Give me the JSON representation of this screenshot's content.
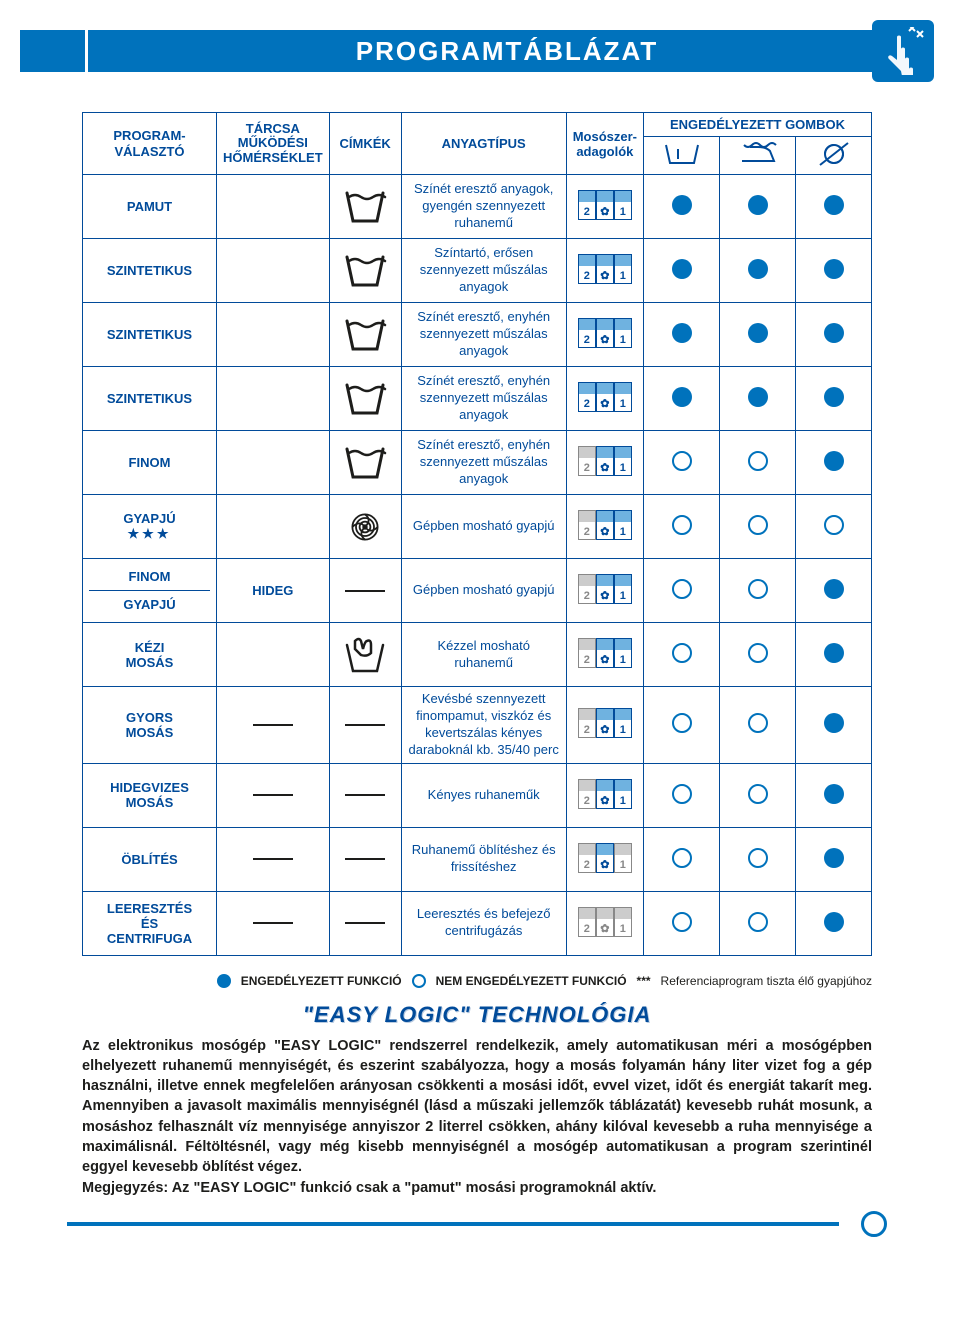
{
  "colors": {
    "accent": "#0072bc",
    "dark_blue": "#014b9a",
    "text": "#1d1d1b",
    "light_blue_fill": "#6fb2e0",
    "inactive_grey": "#888888",
    "inactive_fill": "#cccccc",
    "bg": "#ffffff"
  },
  "title": "PROGRAMTÁBLÁZAT",
  "title_icon": "hand-icon",
  "headers": {
    "program": "PROGRAM-VÁLASZTÓ",
    "tarcsa": "TÁRCSA MŰKÖDÉSI HŐMÉRSÉKLET",
    "cimkek": "CÍMKÉK",
    "anyag": "ANYAGTÍPUS",
    "mososzer": "Mosószer-adagolók",
    "gombok": "ENGEDÉLYEZETT GOMBOK"
  },
  "button_icons": [
    "prewash-icon",
    "easy-iron-icon",
    "no-spin-icon"
  ],
  "rows": [
    {
      "program": "PAMUT",
      "stars": "",
      "tarcsa": "",
      "icon": "tub",
      "desc": "Színét eresztő anyagok, gyengén szennyezett ruhanemű",
      "dispenser": [
        true,
        true,
        true
      ],
      "buttons": [
        "filled",
        "filled",
        "filled"
      ]
    },
    {
      "program": "SZINTETIKUS",
      "stars": "",
      "tarcsa": "",
      "icon": "tub",
      "desc": "Színtartó, erősen szennyezett műszálas anyagok",
      "dispenser": [
        true,
        true,
        true
      ],
      "buttons": [
        "filled",
        "filled",
        "filled"
      ]
    },
    {
      "program": "SZINTETIKUS",
      "stars": "",
      "tarcsa": "",
      "icon": "tub",
      "desc": "Színét eresztő, enyhén szennyezett műszálas anyagok",
      "dispenser": [
        true,
        true,
        true
      ],
      "buttons": [
        "filled",
        "filled",
        "filled"
      ]
    },
    {
      "program": "SZINTETIKUS",
      "stars": "",
      "tarcsa": "",
      "icon": "tub",
      "desc": "Színét eresztő, enyhén szennyezett műszálas anyagok",
      "dispenser": [
        true,
        true,
        true
      ],
      "buttons": [
        "filled",
        "filled",
        "filled"
      ]
    },
    {
      "program": "FINOM",
      "stars": "",
      "tarcsa": "",
      "icon": "tub",
      "desc": "Színét eresztő, enyhén szennyezett műszálas anyagok",
      "dispenser": [
        false,
        true,
        true
      ],
      "buttons": [
        "open",
        "open",
        "filled"
      ]
    },
    {
      "program": "GYAPJÚ",
      "stars": "★★★",
      "tarcsa": "",
      "icon": "wool",
      "desc": "Gépben mosható gyapjú",
      "dispenser": [
        false,
        true,
        true
      ],
      "buttons": [
        "open",
        "open",
        "open"
      ]
    },
    {
      "program": "FINOM / GYAPJÚ",
      "stars": "",
      "tarcsa": "HIDEG",
      "icon": "dash",
      "desc": "Gépben mosható gyapjú",
      "dispenser": [
        false,
        true,
        true
      ],
      "buttons": [
        "open",
        "open",
        "filled"
      ],
      "split": true,
      "program_top": "FINOM",
      "program_bottom": "GYAPJÚ"
    },
    {
      "program": "KÉZI MOSÁS",
      "stars": "",
      "tarcsa": "",
      "icon": "hand-tub",
      "desc": "Kézzel mosható ruhanemű",
      "dispenser": [
        false,
        true,
        true
      ],
      "buttons": [
        "open",
        "open",
        "filled"
      ]
    },
    {
      "program": "GYORS MOSÁS",
      "stars": "",
      "tarcsa": "dash",
      "icon": "dash",
      "desc": "Kevésbé szennyezett finompamut, viszkóz és kevertszálas kényes daraboknál kb. 35/40 perc",
      "dispenser": [
        false,
        true,
        true
      ],
      "buttons": [
        "open",
        "open",
        "filled"
      ]
    },
    {
      "program": "HIDEGVIZES MOSÁS",
      "stars": "",
      "tarcsa": "dash",
      "icon": "dash",
      "desc": "Kényes ruhaneműk",
      "dispenser": [
        false,
        true,
        true
      ],
      "buttons": [
        "open",
        "open",
        "filled"
      ]
    },
    {
      "program": "ÖBLÍTÉS",
      "stars": "",
      "tarcsa": "dash",
      "icon": "dash",
      "desc": "Ruhanemű öblítéshez és frissítéshez",
      "dispenser": [
        false,
        true,
        false
      ],
      "buttons": [
        "open",
        "open",
        "filled"
      ]
    },
    {
      "program": "LEERESZTÉS ÉS CENTRIFUGA",
      "stars": "",
      "tarcsa": "dash",
      "icon": "dash",
      "desc": "Leeresztés és befejező centrifugázás",
      "dispenser": [
        false,
        false,
        false
      ],
      "buttons": [
        "open",
        "open",
        "filled"
      ]
    }
  ],
  "legend": {
    "allowed": "ENGEDÉLYEZETT FUNKCIÓ",
    "not_allowed": "NEM ENGEDÉLYEZETT FUNKCIÓ",
    "ref_asterisk": "***",
    "ref": "Referenciaprogram tiszta élő gyapjúhoz"
  },
  "easy_logic": {
    "title": "\"EASY LOGIC\" TECHNOLÓGIA",
    "body": "Az elektronikus mosógép \"EASY LOGIC\" rendszerrel rendelkezik, amely automatikusan méri a mosógépben elhelyezett ruhanemű mennyiségét, és eszerint szabályozza, hogy a mosás folyamán hány liter vizet fog a gép használni, illetve ennek megfelelően arányosan csökkenti a mosási időt, evvel vizet, időt és energiát takarít meg. Amennyiben a javasolt maximális mennyiségnél (lásd a műszaki jellemzők táblázatát) kevesebb ruhát mosunk, a mosáshoz felhasznált víz mennyisége annyiszor 2 literrel csökken, ahány kilóval kevesebb a ruha mennyisége a maximálisnál. Féltöltésnél, vagy még kisebb mennyiségnél a mosógép automatikusan a program szerintinél eggyel kevesebb öblítést végez.",
    "note": "Megjegyzés: Az \"EASY LOGIC\" funkció csak a \"pamut\" mosási programoknál aktív."
  }
}
